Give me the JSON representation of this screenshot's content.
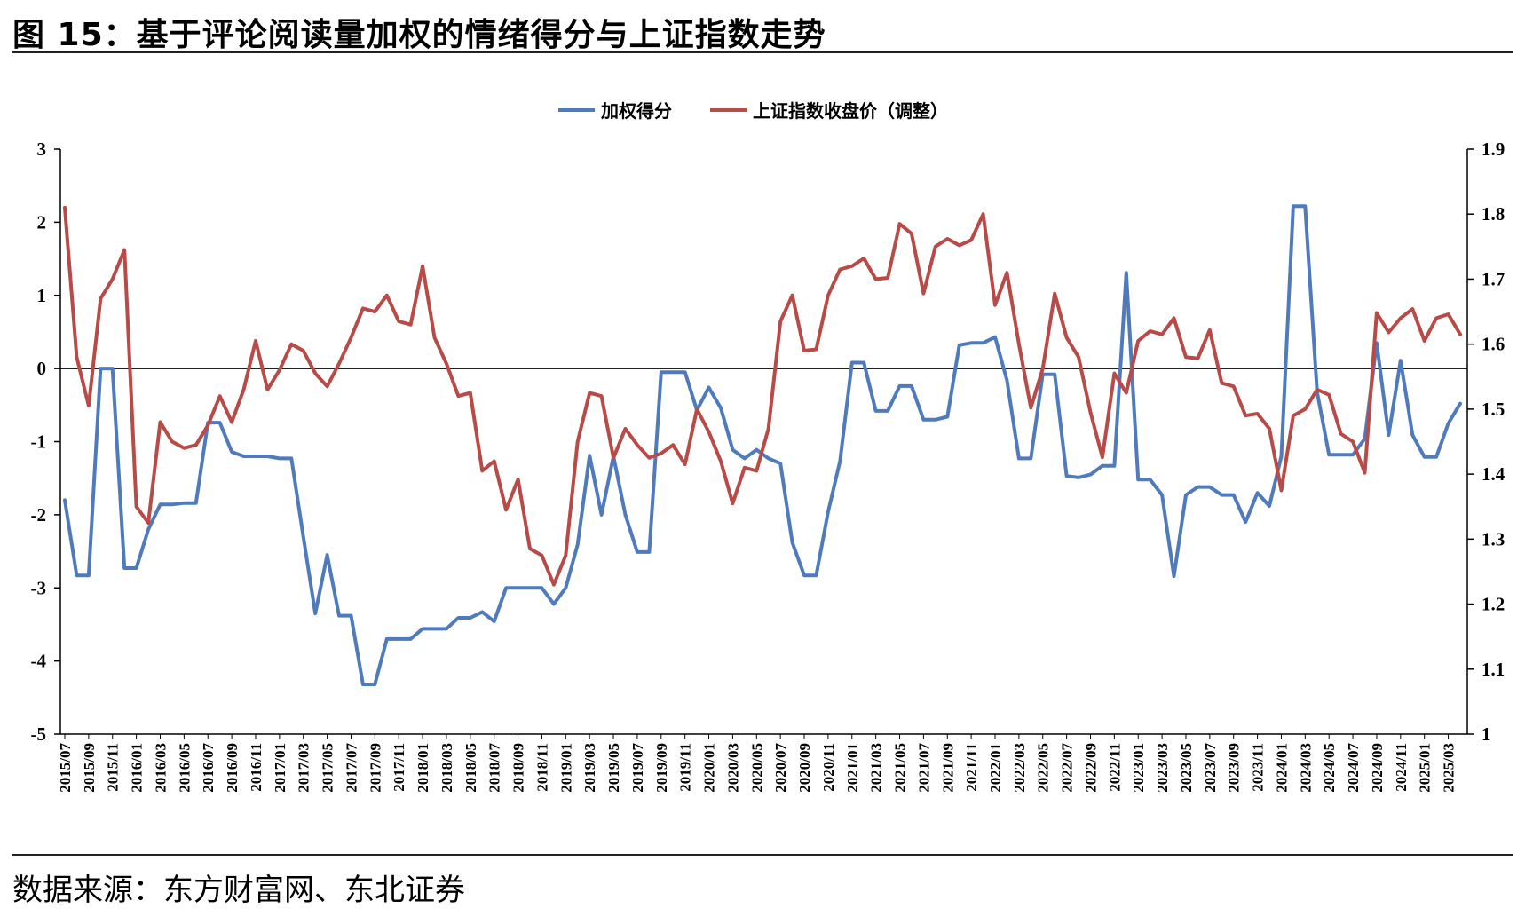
{
  "header": {
    "title": "图 15：基于评论阅读量加权的情绪得分与上证指数走势"
  },
  "footer": {
    "source": "数据来源：东方财富网、东北证券"
  },
  "colors": {
    "score": "#4f7bbd",
    "index": "#b84a47"
  },
  "chart_data": {
    "type": "line",
    "legend": {
      "placement": "top-center"
    },
    "grid": false,
    "y_left": {
      "ticks": [
        "3",
        "2",
        "1",
        "0",
        "-1",
        "-2",
        "-3",
        "-4",
        "-5"
      ],
      "range": [
        -5,
        3
      ]
    },
    "y_right": {
      "ticks": [
        "1.9",
        "1.8",
        "1.7",
        "1.6",
        "1.5",
        "1.4",
        "1.3",
        "1.2",
        "1.1",
        "1"
      ],
      "range": [
        1.0,
        1.9
      ]
    },
    "x_tick_labels": [
      "2015/07",
      "2015/09",
      "2015/11",
      "2016/01",
      "2016/03",
      "2016/05",
      "2016/07",
      "2016/09",
      "2016/11",
      "2017/01",
      "2017/03",
      "2017/05",
      "2017/07",
      "2017/09",
      "2017/11",
      "2018/01",
      "2018/03",
      "2018/05",
      "2018/07",
      "2018/09",
      "2018/11",
      "2019/01",
      "2019/03",
      "2019/05",
      "2019/07",
      "2019/09",
      "2019/11",
      "2020/01",
      "2020/03",
      "2020/05",
      "2020/07",
      "2020/09",
      "2020/11",
      "2021/01",
      "2021/03",
      "2021/05",
      "2021/07",
      "2021/09",
      "2021/11",
      "2022/01",
      "2022/03",
      "2022/05",
      "2022/07",
      "2022/09",
      "2022/11",
      "2023/01",
      "2023/03",
      "2023/05",
      "2023/07",
      "2023/09",
      "2023/11",
      "2024/01",
      "2024/03",
      "2024/05",
      "2024/07",
      "2024/09",
      "2024/11",
      "2025/01",
      "2025/03"
    ],
    "series": [
      {
        "name": "加权得分",
        "axis": "left",
        "values": [
          -1.8,
          -2.83,
          -2.83,
          0.0,
          0.0,
          -2.73,
          -2.73,
          -2.2,
          -1.86,
          -1.86,
          -1.84,
          -1.84,
          -0.74,
          -0.74,
          -1.14,
          -1.2,
          -1.2,
          -1.2,
          -1.23,
          -1.23,
          -2.3,
          -3.35,
          -2.55,
          -3.38,
          -3.38,
          -4.32,
          -4.32,
          -3.7,
          -3.7,
          -3.7,
          -3.56,
          -3.56,
          -3.56,
          -3.41,
          -3.41,
          -3.33,
          -3.46,
          -3.0,
          -3.0,
          -3.0,
          -3.0,
          -3.22,
          -3.0,
          -2.41,
          -1.19,
          -2.0,
          -1.2,
          -2.0,
          -2.51,
          -2.51,
          -0.05,
          -0.05,
          -0.05,
          -0.57,
          -0.26,
          -0.54,
          -1.11,
          -1.23,
          -1.11,
          -1.23,
          -1.3,
          -2.38,
          -2.83,
          -2.83,
          -1.96,
          -1.27,
          0.08,
          0.08,
          -0.58,
          -0.58,
          -0.24,
          -0.24,
          -0.7,
          -0.7,
          -0.66,
          0.32,
          0.35,
          0.35,
          0.43,
          -0.16,
          -1.23,
          -1.23,
          -0.08,
          -0.08,
          -1.47,
          -1.49,
          -1.45,
          -1.33,
          -1.33,
          1.31,
          -1.52,
          -1.52,
          -1.73,
          -2.84,
          -1.73,
          -1.62,
          -1.62,
          -1.73,
          -1.73,
          -2.1,
          -1.7,
          -1.88,
          -1.2,
          2.22,
          2.22,
          -0.32,
          -1.18,
          -1.18,
          -1.18,
          -0.96,
          0.35,
          -0.91,
          0.11,
          -0.91,
          -1.21,
          -1.21,
          -0.75,
          -0.48
        ]
      },
      {
        "name": "上证指数收盘价（调整）",
        "axis": "right",
        "values": [
          1.81,
          1.58,
          1.505,
          1.67,
          1.7,
          1.745,
          1.35,
          1.325,
          1.48,
          1.45,
          1.44,
          1.445,
          1.475,
          1.52,
          1.48,
          1.53,
          1.605,
          1.53,
          1.56,
          1.6,
          1.59,
          1.555,
          1.535,
          1.57,
          1.61,
          1.655,
          1.65,
          1.675,
          1.635,
          1.63,
          1.72,
          1.61,
          1.57,
          1.52,
          1.525,
          1.405,
          1.42,
          1.345,
          1.392,
          1.285,
          1.275,
          1.23,
          1.275,
          1.45,
          1.525,
          1.52,
          1.425,
          1.47,
          1.445,
          1.425,
          1.432,
          1.445,
          1.415,
          1.5,
          1.465,
          1.42,
          1.355,
          1.41,
          1.405,
          1.47,
          1.635,
          1.675,
          1.59,
          1.592,
          1.675,
          1.715,
          1.72,
          1.732,
          1.7,
          1.702,
          1.785,
          1.77,
          1.678,
          1.75,
          1.762,
          1.752,
          1.76,
          1.8,
          1.66,
          1.71,
          1.6,
          1.502,
          1.562,
          1.678,
          1.61,
          1.58,
          1.495,
          1.426,
          1.555,
          1.525,
          1.605,
          1.62,
          1.615,
          1.64,
          1.58,
          1.578,
          1.622,
          1.54,
          1.535,
          1.49,
          1.493,
          1.47,
          1.375,
          1.49,
          1.5,
          1.53,
          1.522,
          1.462,
          1.45,
          1.402,
          1.648,
          1.618,
          1.64,
          1.654,
          1.605,
          1.64,
          1.646,
          1.615
        ]
      }
    ]
  }
}
